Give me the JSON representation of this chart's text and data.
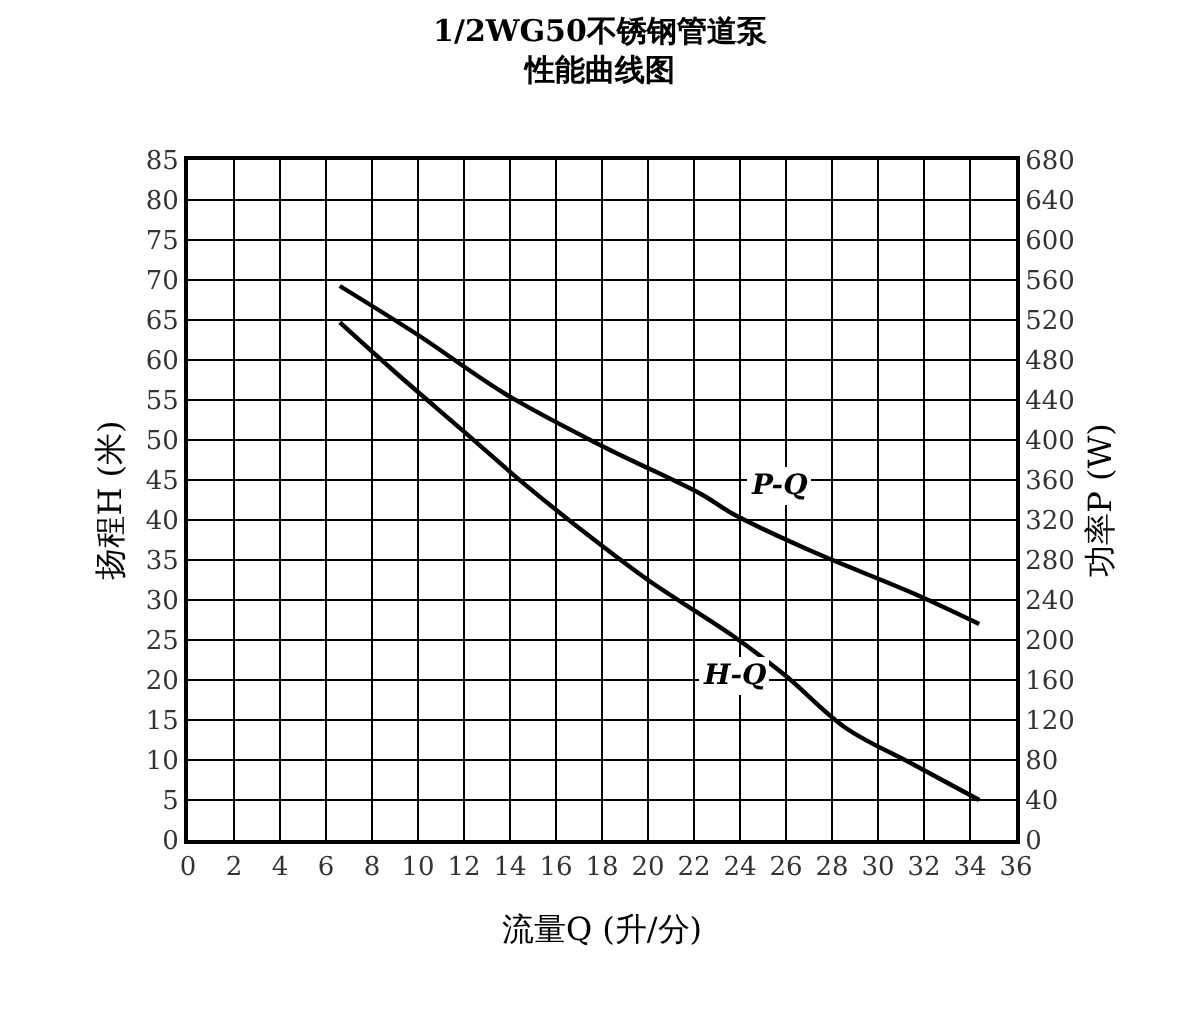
{
  "chart_data": {
    "type": "line",
    "title": "1/2WG50不锈钢管道泵",
    "subtitle": "性能曲线图",
    "xlabel": "流量Q (升/分)",
    "ylabel": "扬程H (米)",
    "y2label": "功率P (W)",
    "xlim": [
      0,
      36
    ],
    "xticks": [
      0,
      2,
      4,
      6,
      8,
      10,
      12,
      14,
      16,
      18,
      20,
      22,
      24,
      26,
      28,
      30,
      32,
      34,
      36
    ],
    "ylim": [
      0,
      85
    ],
    "yticks": [
      0,
      5,
      10,
      15,
      20,
      25,
      30,
      35,
      40,
      45,
      50,
      55,
      60,
      65,
      70,
      75,
      80,
      85
    ],
    "y2lim": [
      0,
      680
    ],
    "y2ticks": [
      0,
      40,
      80,
      120,
      160,
      200,
      240,
      280,
      320,
      360,
      400,
      440,
      480,
      520,
      560,
      600,
      640,
      680
    ],
    "grid": true,
    "legend": false,
    "marker": "none",
    "line_style": "solid",
    "series": [
      {
        "name": "H-Q",
        "color": "#000000",
        "x": [
          6.6,
          9,
          12.1,
          14.5,
          17,
          20,
          23.7,
          26,
          28.6,
          31.5,
          34.4
        ],
        "values": [
          64.7,
          58.5,
          50.8,
          44.8,
          39,
          32.5,
          25.5,
          20.5,
          14,
          9.5,
          5
        ]
      },
      {
        "name": "P-Q",
        "color": "#000000",
        "axis": "y2",
        "x": [
          6.6,
          10,
          13.8,
          18,
          22.3,
          23.7,
          27,
          31.6,
          34.4
        ],
        "values": [
          554,
          505,
          446,
          394,
          346,
          326,
          290,
          246,
          216
        ]
      }
    ]
  }
}
